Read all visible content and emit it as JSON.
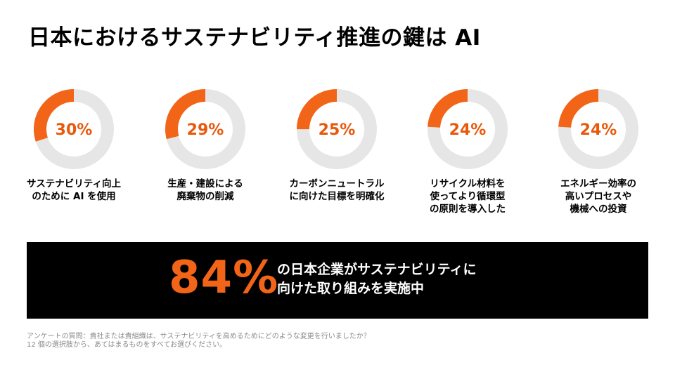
{
  "slide": {
    "title": "日本におけるサステナビリティ推進の鍵は AI",
    "accent_color": "#f26418",
    "ring_track_color": "#e6e6e6"
  },
  "chart_data": {
    "type": "donut",
    "items": [
      {
        "value": 30,
        "label": "30%",
        "caption": "サステナビリティ向上\nのために AI を使用"
      },
      {
        "value": 29,
        "label": "29%",
        "caption": "生産・建設による\n廃棄物の削減"
      },
      {
        "value": 25,
        "label": "25%",
        "caption": "カーボンニュートラル\nに向けた目標を明確化"
      },
      {
        "value": 24,
        "label": "24%",
        "caption": "リサイクル材料を\n使ってより循環型\nの原則を導入した"
      },
      {
        "value": 24,
        "label": "24%",
        "caption": "エネルギー効率の\n高いプロセスや\n機械への投資"
      }
    ],
    "max": 100
  },
  "banner": {
    "value": "84%",
    "text": "の日本企業がサステナビリティに\n向けた取り組みを実施中"
  },
  "footnote": {
    "line1": "アンケートの質問：貴社または貴組織は、サステナビリティを高めるためにどのような変更を行いましたか？",
    "line2": "12 個の選択肢から、あてはまるものをすべてお選びください。"
  }
}
